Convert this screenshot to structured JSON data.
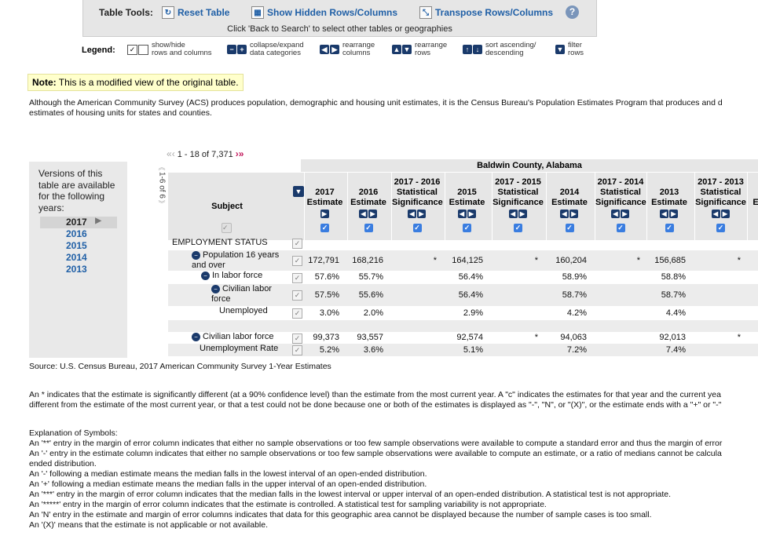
{
  "toolbar": {
    "label": "Table Tools:",
    "reset": "Reset Table",
    "show_hidden": "Show Hidden Rows/Columns",
    "transpose": "Transpose Rows/Columns",
    "help": "?",
    "back_note": "Click 'Back to Search' to select other tables or geographies"
  },
  "legend": {
    "title": "Legend:",
    "items": [
      {
        "text": "show/hide\nrows and columns"
      },
      {
        "text": "collapse/expand\ndata categories"
      },
      {
        "text": "rearrange\ncolumns"
      },
      {
        "text": "rearrange\nrows"
      },
      {
        "text": "sort ascending/\ndescending"
      },
      {
        "text": "filter\nrows"
      }
    ]
  },
  "note": {
    "label": "Note:",
    "text": " This is a modified view of the original table."
  },
  "intro": "Although the American Community Survey (ACS) produces population, demographic and housing unit estimates, it is the Census Bureau's Population Estimates Program that produces and d\nestimates of housing units for states and counties.",
  "years_panel": {
    "text": "Versions of this table are available for the following years:",
    "years": [
      "2017",
      "2016",
      "2015",
      "2014",
      "2013"
    ],
    "selected": "2017"
  },
  "pager": {
    "text": "1 - 18 of 7,371",
    "side": "1-6 of 6"
  },
  "table": {
    "geography": "Baldwin County, Alabama",
    "subject_header": "Subject",
    "columns": [
      {
        "line1": "",
        "line2": "2017",
        "line3": "Estimate"
      },
      {
        "line1": "",
        "line2": "2016",
        "line3": "Estimate"
      },
      {
        "line1": "2017 - 2016",
        "line2": "Statistical",
        "line3": "Significance"
      },
      {
        "line1": "",
        "line2": "2015",
        "line3": "Estimate"
      },
      {
        "line1": "2017 - 2015",
        "line2": "Statistical",
        "line3": "Significance"
      },
      {
        "line1": "",
        "line2": "2014",
        "line3": "Estimate"
      },
      {
        "line1": "2017 - 2014",
        "line2": "Statistical",
        "line3": "Significance"
      },
      {
        "line1": "",
        "line2": "2013",
        "line3": "Estimate"
      },
      {
        "line1": "2017 - 2013",
        "line2": "Statistical",
        "line3": "Significance"
      },
      {
        "line1": "",
        "line2": "",
        "line3": "E"
      }
    ],
    "rows": [
      {
        "name": "EMPLOYMENT STATUS",
        "values": [
          "",
          "",
          "",
          "",
          "",
          "",
          "",
          "",
          ""
        ]
      },
      {
        "name": "Population 16 years\nand over",
        "values": [
          "172,791",
          "168,216",
          "*",
          "164,125",
          "*",
          "160,204",
          "*",
          "156,685",
          "*"
        ]
      },
      {
        "name": "In labor force",
        "values": [
          "57.6%",
          "55.7%",
          "",
          "56.4%",
          "",
          "58.9%",
          "",
          "58.8%",
          ""
        ]
      },
      {
        "name": "Civilian labor\nforce",
        "values": [
          "57.5%",
          "55.6%",
          "",
          "56.4%",
          "",
          "58.7%",
          "",
          "58.7%",
          ""
        ]
      },
      {
        "name": "Unemployed",
        "values": [
          "3.0%",
          "2.0%",
          "",
          "2.9%",
          "",
          "4.2%",
          "",
          "4.4%",
          ""
        ]
      },
      {
        "name": "",
        "values": [
          "",
          "",
          "",
          "",
          "",
          "",
          "",
          "",
          ""
        ]
      },
      {
        "name": "Civilian labor force",
        "values": [
          "99,373",
          "93,557",
          "",
          "92,574",
          "*",
          "94,063",
          "",
          "92,013",
          "*"
        ]
      },
      {
        "name": "Unemployment Rate",
        "values": [
          "5.2%",
          "3.6%",
          "",
          "5.1%",
          "",
          "7.2%",
          "",
          "7.4%",
          ""
        ]
      }
    ]
  },
  "source": "Source: U.S. Census Bureau, 2017 American Community Survey 1-Year Estimates",
  "asterisk_note": "An * indicates that the estimate is significantly different (at a 90% confidence level) than the estimate from the most current year. A \"c\" indicates the estimates for that year and the current yea\ndifferent from the estimate of the most current year, or that a test could not be done because one or both of the estimates is displayed as \"-\", \"N\", or \"(X)\", or the estimate ends with a \"+\" or \"-\"",
  "symbols": "Explanation of Symbols:\nAn '**' entry in the margin of error column indicates that either no sample observations or too few sample observations were available to compute a standard error and thus the margin of error\nAn '-' entry in the estimate column indicates that either no sample observations or too few sample observations were available to compute an estimate, or a ratio of medians cannot be calcula\nended distribution.\nAn '-' following a median estimate means the median falls in the lowest interval of an open-ended distribution.\nAn '+' following a median estimate means the median falls in the upper interval of an open-ended distribution.\nAn '***' entry in the margin of error column indicates that the median falls in the lowest interval or upper interval of an open-ended distribution. A statistical test is not appropriate.\nAn '*****' entry in the margin of error column indicates that the estimate is controlled. A statistical test for sampling variability is not appropriate.\nAn 'N' entry in the estimate and margin of error columns indicates that data for this geographic area cannot be displayed because the number of sample cases is too small.\nAn '(X)' means that the estimate is not applicable or not available."
}
